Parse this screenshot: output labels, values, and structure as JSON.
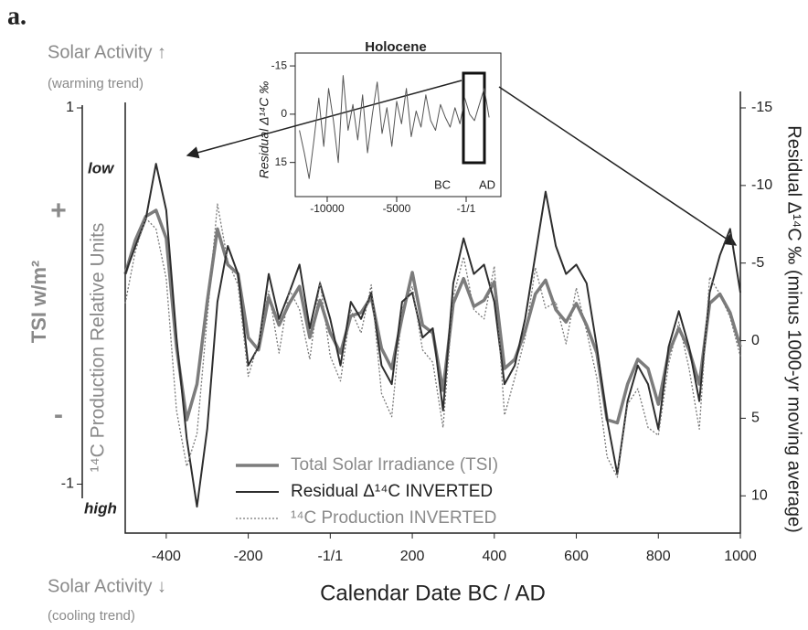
{
  "figure_label": "a.",
  "annotations": {
    "solar_up": "Solar Activity ↑",
    "warming": "(warming trend)",
    "solar_down": "Solar Activity ↓",
    "cooling": "(cooling trend)",
    "low": "low",
    "high": "high",
    "plus": "+",
    "minus": "-",
    "tsi_label": "TSI w/m²"
  },
  "chart_data": [
    {
      "type": "line",
      "x_label": "Calendar Date BC / AD",
      "y_label": "¹⁴C Production Relative Units",
      "y2_label": "Residual Δ¹⁴C ‰ (minus 1000-yr moving average)",
      "xlim": [
        -500,
        1000
      ],
      "xticks": [
        -400,
        -200,
        {
          "value": 0,
          "label": "-1/1"
        },
        200,
        400,
        600,
        800,
        1000
      ],
      "ylim": [
        -1.26,
        1
      ],
      "yticks": [
        1,
        -1
      ],
      "y2lim": [
        12.4,
        -15
      ],
      "y2ticks": [
        -15,
        -10,
        -5,
        0,
        5,
        10
      ],
      "x": [
        -500,
        -475,
        -450,
        -425,
        -400,
        -375,
        -350,
        -325,
        -300,
        -275,
        -250,
        -225,
        -200,
        -175,
        -150,
        -125,
        -100,
        -75,
        -50,
        -25,
        0,
        25,
        50,
        75,
        100,
        125,
        150,
        175,
        200,
        225,
        250,
        275,
        300,
        325,
        350,
        375,
        400,
        425,
        450,
        475,
        500,
        525,
        550,
        575,
        600,
        625,
        650,
        675,
        700,
        725,
        750,
        775,
        800,
        825,
        850,
        875,
        900,
        925,
        950,
        975,
        1000
      ],
      "series": [
        {
          "name": "Total Solar Irradiance (TSI)",
          "color": "#7c7c7c",
          "width": 3.5,
          "dash": "none",
          "axis": "y2",
          "values": [
            -4.3,
            -6.5,
            -8.0,
            -8.4,
            -6.6,
            0.4,
            5.1,
            2.8,
            -2.5,
            -7.2,
            -4.9,
            -4.3,
            -0.2,
            0.6,
            -2.8,
            -1.0,
            -2.4,
            -3.5,
            -0.2,
            -2.6,
            -0.5,
            0.8,
            -1.6,
            -1.8,
            -2.8,
            0.5,
            1.8,
            -1.5,
            -4.4,
            -1.0,
            -0.5,
            3.2,
            -2.4,
            -4.0,
            -2.2,
            -2.6,
            -3.8,
            1.8,
            1.2,
            -0.6,
            -3.0,
            -3.9,
            -2.0,
            -1.2,
            -2.4,
            -1.0,
            0.8,
            5.1,
            5.3,
            2.8,
            1.2,
            1.8,
            4.1,
            0.8,
            -0.8,
            0.6,
            2.8,
            -2.4,
            -3.0,
            -1.8,
            0.4
          ]
        },
        {
          "name": "Residual Δ¹⁴C INVERTED",
          "color": "#2e2e2e",
          "width": 2,
          "dash": "none",
          "axis": "y2",
          "values": [
            -4.3,
            -6.1,
            -7.8,
            -11.4,
            -8.4,
            -0.2,
            6.3,
            10.7,
            5.7,
            -2.5,
            -6.1,
            -4.3,
            1.6,
            0.4,
            -4.3,
            -1.4,
            -3.1,
            -4.9,
            -0.8,
            -3.7,
            -1.4,
            1.6,
            -2.5,
            -1.4,
            -3.1,
            1.6,
            2.8,
            -2.5,
            -3.1,
            -0.2,
            -0.8,
            4.5,
            -3.7,
            -6.6,
            -4.3,
            -4.9,
            -2.5,
            2.8,
            1.6,
            -1.4,
            -5.5,
            -9.6,
            -6.1,
            -4.3,
            -4.9,
            -3.7,
            0.4,
            5.1,
            8.6,
            3.9,
            1.6,
            2.8,
            5.7,
            0.4,
            -1.9,
            0.4,
            3.9,
            -3.1,
            -5.5,
            -7.2,
            -3.1
          ]
        },
        {
          "name": "¹⁴C Production INVERTED",
          "color": "#777777",
          "width": 1.3,
          "dash": "2,2",
          "axis": "y2",
          "values": [
            -2.4,
            -5.8,
            -7.9,
            -7.2,
            -4.0,
            4.5,
            8.1,
            6.0,
            -1.5,
            -8.8,
            -5.1,
            -3.6,
            2.3,
            0.1,
            -3.2,
            0.8,
            -3.3,
            -2.0,
            1.2,
            -3.8,
            1.0,
            2.6,
            -2.0,
            -0.5,
            -3.6,
            3.4,
            4.9,
            -2.0,
            -3.5,
            0.6,
            1.4,
            5.6,
            -2.8,
            -5.4,
            -2.0,
            -1.4,
            -4.8,
            4.8,
            2.4,
            -0.2,
            -4.7,
            -2.1,
            -2.5,
            0.2,
            -3.4,
            -0.6,
            2.4,
            7.5,
            8.8,
            4.1,
            3.1,
            5.6,
            6.1,
            1.5,
            -1.2,
            1.8,
            5.7,
            -4.1,
            -3.0,
            -1.5,
            1.0
          ]
        }
      ]
    },
    {
      "type": "line",
      "title": "Holocene",
      "y_label": "Residual Δ¹⁴C ‰",
      "annotations": [
        "BC",
        "AD"
      ],
      "xlim": [
        -12300,
        2500
      ],
      "xticks": [
        -10000,
        -5000,
        {
          "value": 0,
          "label": "-1/1"
        }
      ],
      "ylim": [
        25.6,
        -19
      ],
      "yticks": [
        -15,
        0,
        15
      ],
      "x": [
        -12000,
        -11650,
        -11300,
        -10950,
        -10600,
        -10250,
        -9900,
        -9550,
        -9200,
        -8850,
        -8500,
        -8150,
        -7800,
        -7450,
        -7100,
        -6750,
        -6400,
        -6050,
        -5700,
        -5350,
        -5000,
        -4650,
        -4300,
        -3950,
        -3600,
        -3250,
        -2900,
        -2550,
        -2200,
        -1850,
        -1500,
        -1150,
        -800,
        -450,
        -100,
        250,
        600,
        950,
        1300,
        1650
      ],
      "series": [
        {
          "color": "#555555",
          "width": 1,
          "dash": "none",
          "values": [
            5,
            12,
            20,
            8,
            -5,
            10,
            -8,
            2,
            15,
            -12,
            5,
            -3,
            8,
            -6,
            12,
            0,
            -10,
            6,
            -2,
            10,
            -4,
            3,
            -8,
            7,
            -1,
            4,
            -6,
            2,
            5,
            -3,
            1,
            4,
            -2,
            3,
            -5,
            0,
            2,
            -3,
            -8,
            1
          ]
        }
      ]
    }
  ]
}
